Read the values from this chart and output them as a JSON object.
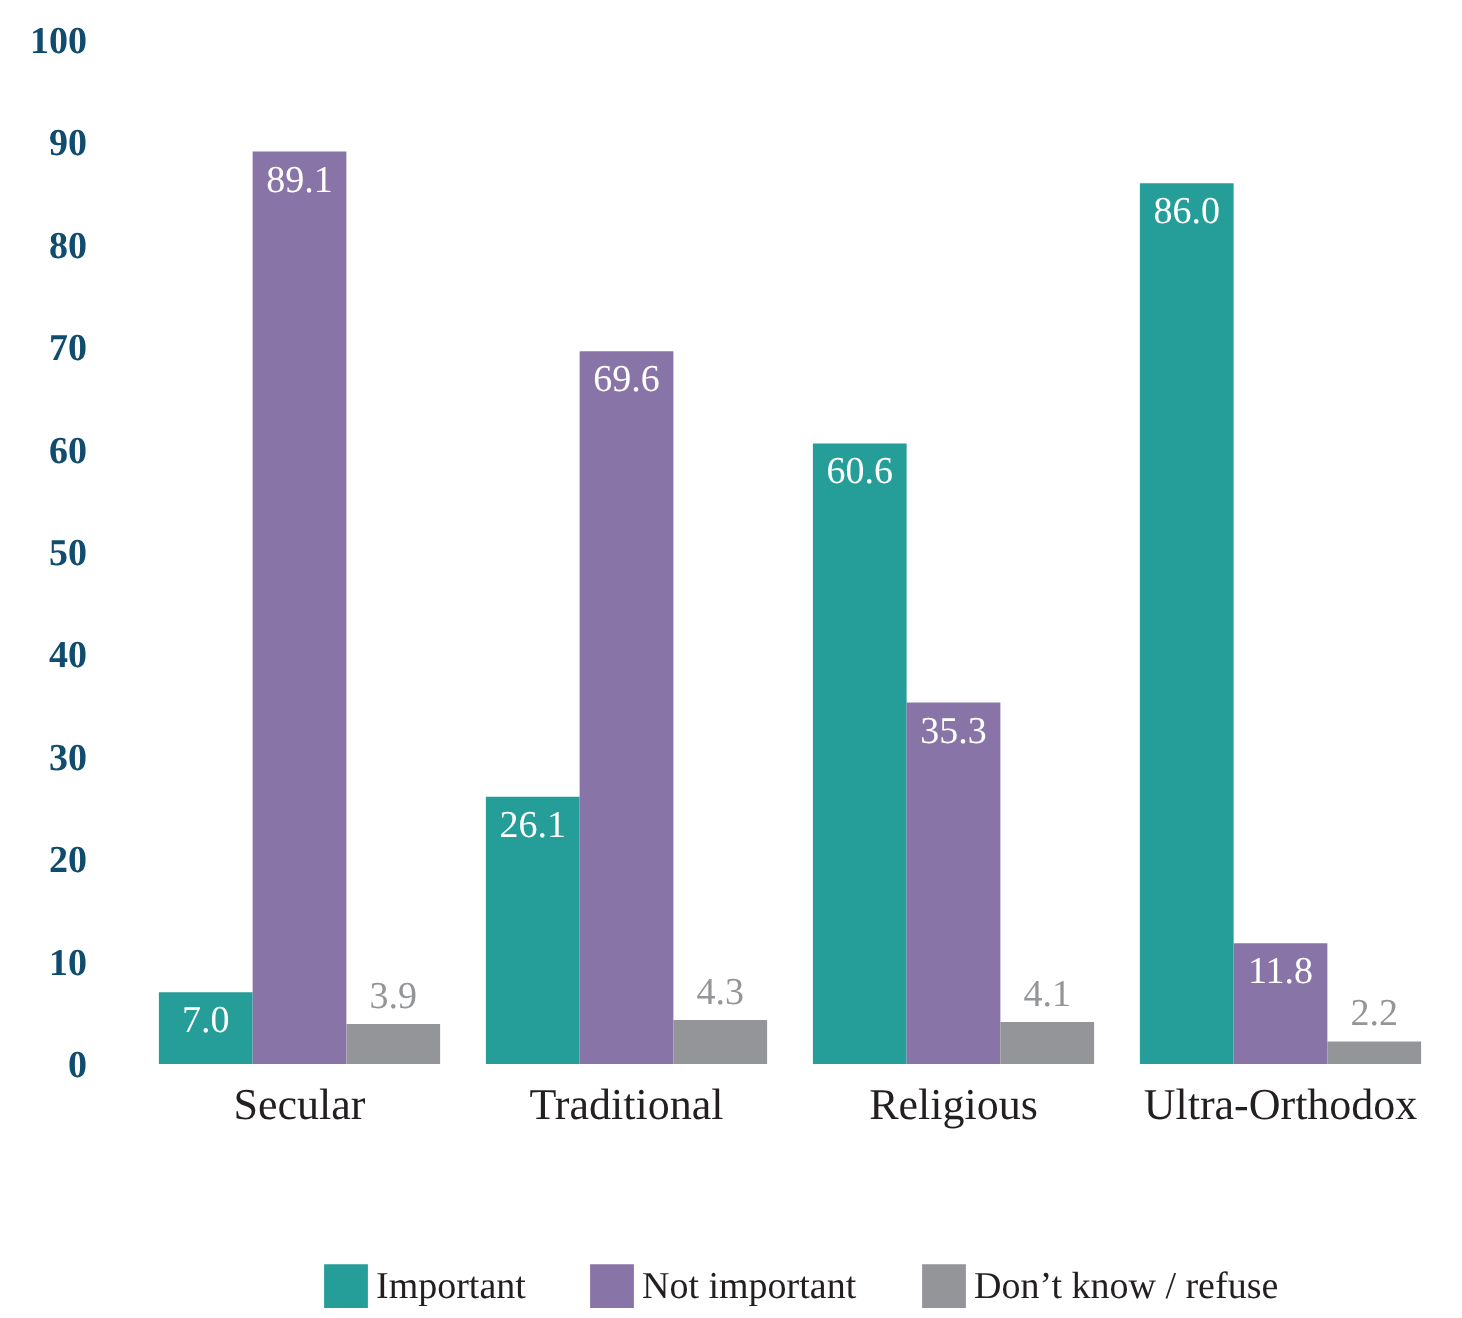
{
  "chart_data": {
    "type": "bar",
    "categories": [
      "Secular",
      "Traditional",
      "Religious",
      "Ultra-Orthodox"
    ],
    "series": [
      {
        "name": "Important",
        "color": "#259e99",
        "values": [
          7.0,
          26.1,
          60.6,
          86.0
        ],
        "value_labels": [
          "7.0",
          "26.1",
          "60.6",
          "86.0"
        ]
      },
      {
        "name": "Not important",
        "color": "#8874a6",
        "values": [
          89.1,
          69.6,
          35.3,
          11.8
        ],
        "value_labels": [
          "89.1",
          "69.6",
          "35.3",
          "11.8"
        ]
      },
      {
        "name": "Don’t know / refuse",
        "color": "#939598",
        "values": [
          3.9,
          4.3,
          4.1,
          2.2
        ],
        "value_labels": [
          "3.9",
          "4.3",
          "4.1",
          "2.2"
        ]
      }
    ],
    "ylim": [
      0,
      100
    ],
    "yticks": [
      0,
      10,
      20,
      30,
      40,
      50,
      60,
      70,
      80,
      90,
      100
    ],
    "grid": false,
    "legend": "bottom"
  }
}
